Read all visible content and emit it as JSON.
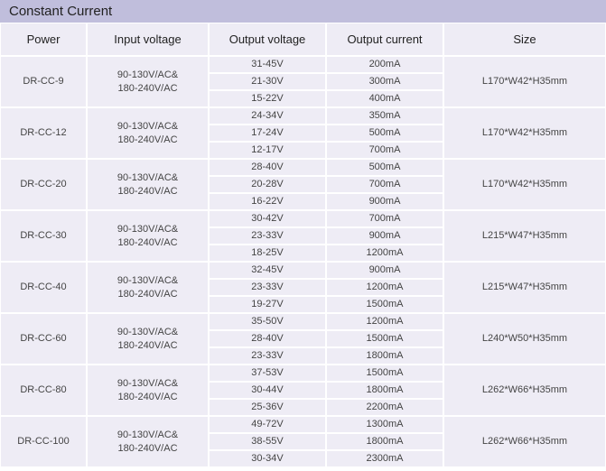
{
  "colors": {
    "title_bg": "#c0bedc",
    "cell_bg": "#eeecf5",
    "border": "#ffffff",
    "text": "#222222",
    "subtext": "#444444"
  },
  "title": "Constant Current",
  "headers": {
    "power": "Power",
    "input": "Input voltage",
    "output_voltage": "Output voltage",
    "output_current": "Output current",
    "size": "Size"
  },
  "rows": [
    {
      "power": "DR-CC-9",
      "input": "90-130V/AC&\n180-240V/AC",
      "size": "L170*W42*H35mm",
      "subs": [
        {
          "ov": "31-45V",
          "oc": "200mA"
        },
        {
          "ov": "21-30V",
          "oc": "300mA"
        },
        {
          "ov": "15-22V",
          "oc": "400mA"
        }
      ]
    },
    {
      "power": "DR-CC-12",
      "input": "90-130V/AC&\n180-240V/AC",
      "size": "L170*W42*H35mm",
      "subs": [
        {
          "ov": "24-34V",
          "oc": "350mA"
        },
        {
          "ov": "17-24V",
          "oc": "500mA"
        },
        {
          "ov": "12-17V",
          "oc": "700mA"
        }
      ]
    },
    {
      "power": "DR-CC-20",
      "input": "90-130V/AC&\n180-240V/AC",
      "size": "L170*W42*H35mm",
      "subs": [
        {
          "ov": "28-40V",
          "oc": "500mA"
        },
        {
          "ov": "20-28V",
          "oc": "700mA"
        },
        {
          "ov": "16-22V",
          "oc": "900mA"
        }
      ]
    },
    {
      "power": "DR-CC-30",
      "input": "90-130V/AC&\n180-240V/AC",
      "size": "L215*W47*H35mm",
      "subs": [
        {
          "ov": "30-42V",
          "oc": "700mA"
        },
        {
          "ov": "23-33V",
          "oc": "900mA"
        },
        {
          "ov": "18-25V",
          "oc": "1200mA"
        }
      ]
    },
    {
      "power": "DR-CC-40",
      "input": "90-130V/AC&\n180-240V/AC",
      "size": "L215*W47*H35mm",
      "subs": [
        {
          "ov": "32-45V",
          "oc": "900mA"
        },
        {
          "ov": "23-33V",
          "oc": "1200mA"
        },
        {
          "ov": "19-27V",
          "oc": "1500mA"
        }
      ]
    },
    {
      "power": "DR-CC-60",
      "input": "90-130V/AC&\n180-240V/AC",
      "size": "L240*W50*H35mm",
      "subs": [
        {
          "ov": "35-50V",
          "oc": "1200mA"
        },
        {
          "ov": "28-40V",
          "oc": "1500mA"
        },
        {
          "ov": "23-33V",
          "oc": "1800mA"
        }
      ]
    },
    {
      "power": "DR-CC-80",
      "input": "90-130V/AC&\n180-240V/AC",
      "size": "L262*W66*H35mm",
      "subs": [
        {
          "ov": "37-53V",
          "oc": "1500mA"
        },
        {
          "ov": "30-44V",
          "oc": "1800mA"
        },
        {
          "ov": "25-36V",
          "oc": "2200mA"
        }
      ]
    },
    {
      "power": "DR-CC-100",
      "input": "90-130V/AC&\n180-240V/AC",
      "size": "L262*W66*H35mm",
      "subs": [
        {
          "ov": "49-72V",
          "oc": "1300mA"
        },
        {
          "ov": "38-55V",
          "oc": "1800mA"
        },
        {
          "ov": "30-34V",
          "oc": "2300mA"
        }
      ]
    }
  ]
}
